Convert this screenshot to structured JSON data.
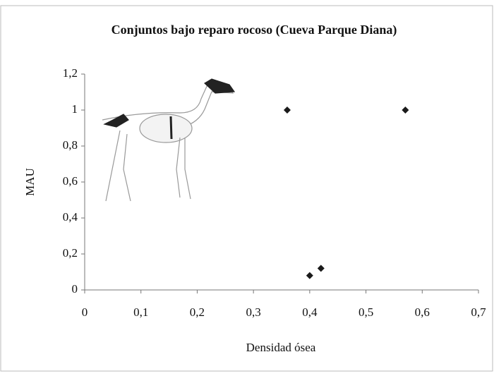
{
  "chart_data": {
    "type": "scatter",
    "title": "Conjuntos bajo reparo rocoso (Cueva Parque Diana)",
    "x_label": "Densidad ósea",
    "y_label": "MAU",
    "x": [
      0.36,
      0.57,
      0.4,
      0.42
    ],
    "values": [
      1,
      1,
      0.08,
      0.12
    ],
    "color": "#1a1a1a",
    "xlim": [
      0,
      0.7
    ],
    "xticks": [
      0,
      {
        "value": 0.1,
        "label": "0,1"
      },
      {
        "value": 0.2,
        "label": "0,2"
      },
      {
        "value": 0.3,
        "label": "0,3"
      },
      {
        "value": 0.4,
        "label": "0,4"
      },
      {
        "value": 0.5,
        "label": "0,5"
      },
      {
        "value": 0.6,
        "label": "0,6"
      },
      {
        "value": 0.7,
        "label": "0,7"
      }
    ],
    "ylim": [
      0,
      1.2
    ],
    "yticks": [
      0,
      {
        "value": 0.2,
        "label": "0,2"
      },
      {
        "value": 0.4,
        "label": "0,4"
      },
      {
        "value": 0.6,
        "label": "0,6"
      },
      {
        "value": 0.8,
        "label": "0,8"
      },
      1,
      {
        "value": 1.2,
        "label": "1,2"
      }
    ]
  }
}
